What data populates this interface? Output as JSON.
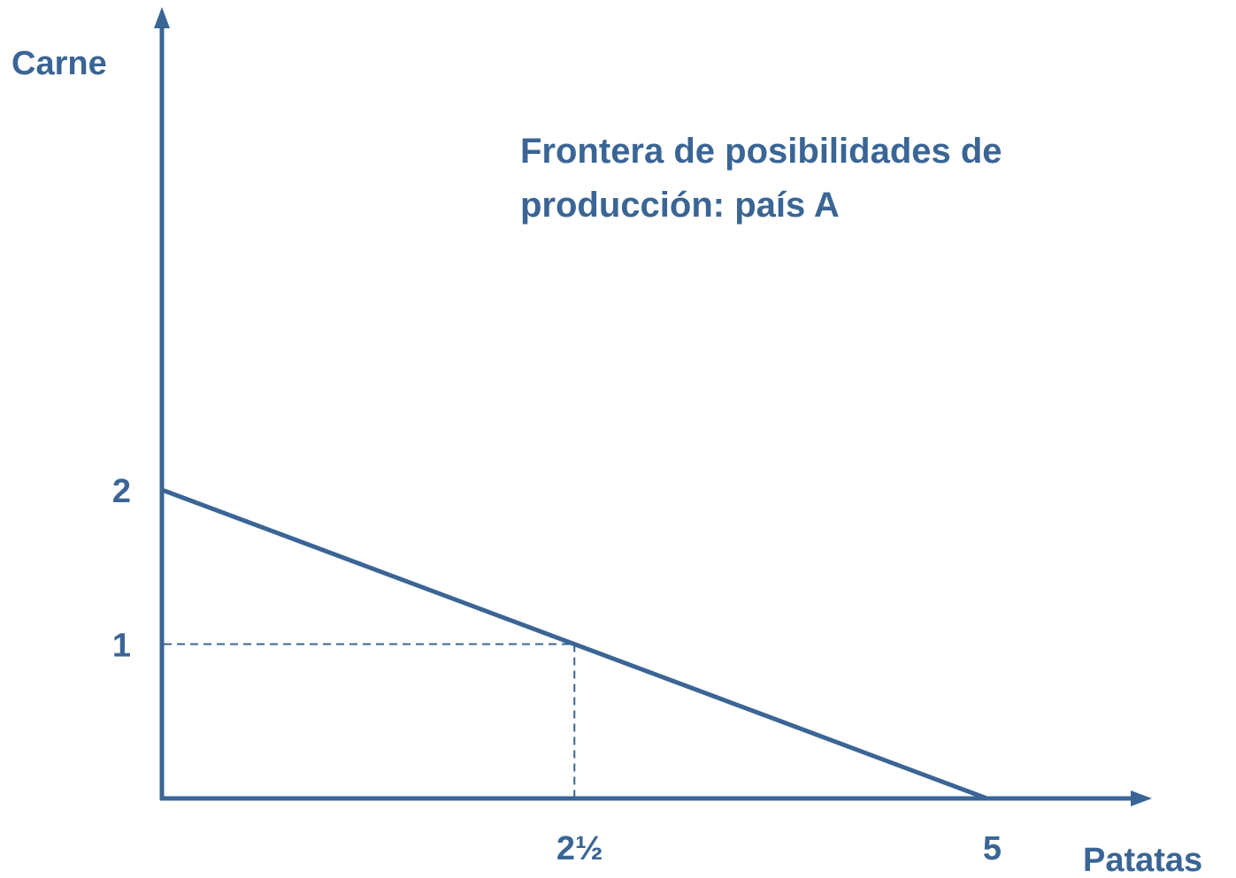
{
  "chart_data": {
    "type": "line",
    "xlabel": "Patatas",
    "ylabel": "Carne",
    "annotation": [
      "Frontera de posibilidades de",
      "producción: país A"
    ],
    "xlim": [
      0,
      6
    ],
    "ylim": [
      0,
      4.2
    ],
    "x_ticks": [
      {
        "value": 2.5,
        "label": "2½"
      },
      {
        "value": 5,
        "label": "5"
      }
    ],
    "y_ticks": [
      {
        "value": 1,
        "label": "1"
      },
      {
        "value": 2,
        "label": "2"
      }
    ],
    "series": [
      {
        "points": [
          {
            "x": 0,
            "y": 2
          },
          {
            "x": 5,
            "y": 0
          }
        ]
      }
    ],
    "reference_point": {
      "x": 2.5,
      "y": 1
    },
    "grid": false,
    "colors": {
      "accent": "#3a6595"
    }
  }
}
